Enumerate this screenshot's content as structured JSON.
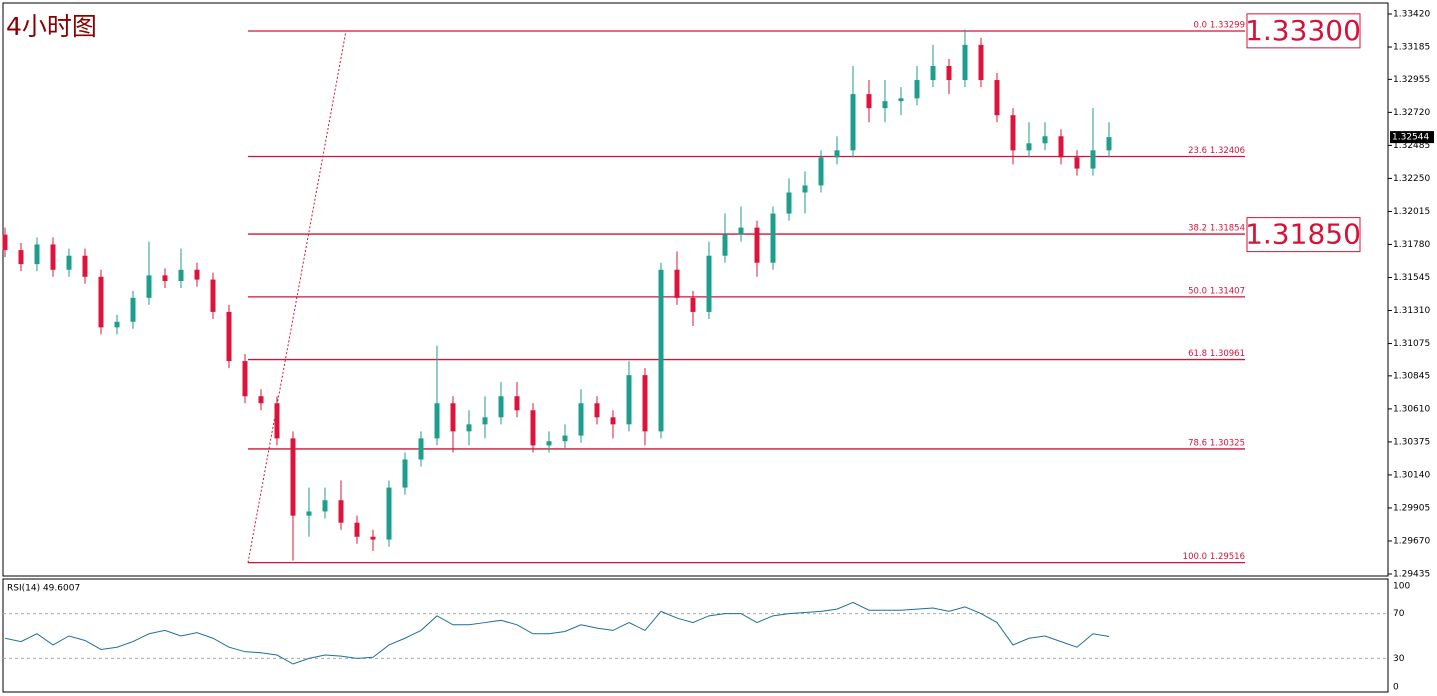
{
  "chart_data": {
    "type": "candlestick",
    "title": "4小时图",
    "up_color": "#1e9e8c",
    "down_color": "#dc143c",
    "fib_color": "#d2143a",
    "ylim": [
      1.29435,
      1.3342
    ],
    "yticks": [
      {
        "value": 1.3342,
        "label": "1.33420"
      },
      {
        "value": 1.33185,
        "label": "1.33185"
      },
      {
        "value": 1.32955,
        "label": "1.32955"
      },
      {
        "value": 1.3272,
        "label": "1.32720"
      },
      {
        "value": 1.32485,
        "label": "1.32485"
      },
      {
        "value": 1.3225,
        "label": "1.32250"
      },
      {
        "value": 1.32015,
        "label": "1.32015"
      },
      {
        "value": 1.3178,
        "label": "1.31780"
      },
      {
        "value": 1.31545,
        "label": "1.31545"
      },
      {
        "value": 1.3131,
        "label": "1.31310"
      },
      {
        "value": 1.31075,
        "label": "1.31075"
      },
      {
        "value": 1.30845,
        "label": "1.30845"
      },
      {
        "value": 1.3061,
        "label": "1.30610"
      },
      {
        "value": 1.30375,
        "label": "1.30375"
      },
      {
        "value": 1.3014,
        "label": "1.30140"
      },
      {
        "value": 1.29905,
        "label": "1.29905"
      },
      {
        "value": 1.2967,
        "label": "1.29670"
      },
      {
        "value": 1.29435,
        "label": "1.29435"
      }
    ],
    "current_price": 1.32544,
    "fib_levels": [
      {
        "level": "0.0",
        "price": 1.33299
      },
      {
        "level": "23.6",
        "price": 1.32406
      },
      {
        "level": "38.2",
        "price": 1.31854
      },
      {
        "level": "50.0",
        "price": 1.31407
      },
      {
        "level": "61.8",
        "price": 1.30961
      },
      {
        "level": "78.6",
        "price": 1.30325
      },
      {
        "level": "100.0",
        "price": 1.29516
      }
    ],
    "price_boxes": [
      {
        "value": 1.333,
        "label": "1.33300"
      },
      {
        "value": 1.3185,
        "label": "1.31850"
      }
    ],
    "candles": [
      [
        1.3185,
        1.319,
        1.3169,
        1.3174
      ],
      [
        1.3174,
        1.3179,
        1.3159,
        1.3164
      ],
      [
        1.3164,
        1.3183,
        1.3159,
        1.3178
      ],
      [
        1.3178,
        1.3183,
        1.3155,
        1.316
      ],
      [
        1.316,
        1.3175,
        1.3155,
        1.317
      ],
      [
        1.317,
        1.3175,
        1.315,
        1.3155
      ],
      [
        1.3155,
        1.316,
        1.3114,
        1.3119
      ],
      [
        1.3119,
        1.3128,
        1.3114,
        1.3123
      ],
      [
        1.3123,
        1.3145,
        1.3118,
        1.314
      ],
      [
        1.314,
        1.318,
        1.3135,
        1.3156
      ],
      [
        1.3156,
        1.3161,
        1.3147,
        1.3152
      ],
      [
        1.3152,
        1.3175,
        1.3147,
        1.316
      ],
      [
        1.316,
        1.3165,
        1.3148,
        1.3153
      ],
      [
        1.3153,
        1.3158,
        1.3125,
        1.313
      ],
      [
        1.313,
        1.3135,
        1.309,
        1.3095
      ],
      [
        1.3095,
        1.31,
        1.3065,
        1.307
      ],
      [
        1.307,
        1.3075,
        1.306,
        1.3065
      ],
      [
        1.3065,
        1.307,
        1.3035,
        1.304
      ],
      [
        1.304,
        1.3045,
        1.2953,
        1.2985
      ],
      [
        1.2985,
        1.3005,
        1.297,
        1.2988
      ],
      [
        1.2988,
        1.3005,
        1.2983,
        1.2996
      ],
      [
        1.2996,
        1.301,
        1.2975,
        1.298
      ],
      [
        1.298,
        1.2985,
        1.2965,
        1.297
      ],
      [
        1.297,
        1.2975,
        1.296,
        1.2968
      ],
      [
        1.2968,
        1.301,
        1.2963,
        1.3005
      ],
      [
        1.3005,
        1.303,
        1.3,
        1.3025
      ],
      [
        1.3025,
        1.3045,
        1.302,
        1.304
      ],
      [
        1.304,
        1.3106,
        1.3035,
        1.3065
      ],
      [
        1.3065,
        1.307,
        1.303,
        1.3045
      ],
      [
        1.3045,
        1.306,
        1.3035,
        1.305
      ],
      [
        1.305,
        1.307,
        1.304,
        1.3055
      ],
      [
        1.3055,
        1.308,
        1.305,
        1.307
      ],
      [
        1.307,
        1.308,
        1.3055,
        1.306
      ],
      [
        1.306,
        1.3065,
        1.303,
        1.3035
      ],
      [
        1.3035,
        1.3045,
        1.303,
        1.3038
      ],
      [
        1.3038,
        1.305,
        1.3033,
        1.3042
      ],
      [
        1.3042,
        1.3075,
        1.3037,
        1.3065
      ],
      [
        1.3065,
        1.307,
        1.305,
        1.3055
      ],
      [
        1.3055,
        1.306,
        1.304,
        1.305
      ],
      [
        1.305,
        1.3095,
        1.3045,
        1.3085
      ],
      [
        1.3085,
        1.309,
        1.3035,
        1.3045
      ],
      [
        1.3045,
        1.3165,
        1.304,
        1.316
      ],
      [
        1.316,
        1.3173,
        1.3135,
        1.314
      ],
      [
        1.314,
        1.3145,
        1.312,
        1.313
      ],
      [
        1.313,
        1.318,
        1.3125,
        1.317
      ],
      [
        1.317,
        1.32,
        1.3165,
        1.3185
      ],
      [
        1.3185,
        1.3205,
        1.318,
        1.319
      ],
      [
        1.319,
        1.3195,
        1.3155,
        1.3165
      ],
      [
        1.3165,
        1.3205,
        1.316,
        1.32
      ],
      [
        1.32,
        1.3225,
        1.3195,
        1.3215
      ],
      [
        1.3215,
        1.323,
        1.32,
        1.322
      ],
      [
        1.322,
        1.3245,
        1.3215,
        1.324
      ],
      [
        1.324,
        1.3255,
        1.3235,
        1.3245
      ],
      [
        1.3245,
        1.3305,
        1.324,
        1.3285
      ],
      [
        1.3285,
        1.3295,
        1.3265,
        1.3275
      ],
      [
        1.3275,
        1.3295,
        1.3265,
        1.328
      ],
      [
        1.328,
        1.329,
        1.327,
        1.3282
      ],
      [
        1.3282,
        1.3305,
        1.3277,
        1.3295
      ],
      [
        1.3295,
        1.332,
        1.329,
        1.3305
      ],
      [
        1.3305,
        1.331,
        1.3285,
        1.3295
      ],
      [
        1.3295,
        1.3331,
        1.329,
        1.332
      ],
      [
        1.332,
        1.3325,
        1.329,
        1.3295
      ],
      [
        1.3295,
        1.33,
        1.3265,
        1.327
      ],
      [
        1.327,
        1.3275,
        1.3235,
        1.3245
      ],
      [
        1.3245,
        1.3265,
        1.324,
        1.325
      ],
      [
        1.325,
        1.3265,
        1.3245,
        1.3255
      ],
      [
        1.3255,
        1.326,
        1.3235,
        1.324
      ],
      [
        1.324,
        1.3245,
        1.3227,
        1.3232
      ],
      [
        1.3232,
        1.3275,
        1.3227,
        1.3245
      ],
      [
        1.3245,
        1.3265,
        1.324,
        1.32544
      ]
    ],
    "indicator": {
      "type": "line",
      "label": "RSI(14) 49.6007",
      "color": "#1f6f9f",
      "ylim": [
        0,
        100
      ],
      "yticks": [
        100,
        70,
        30,
        0
      ],
      "values": [
        48,
        45,
        52,
        42,
        50,
        46,
        38,
        40,
        45,
        52,
        55,
        50,
        53,
        48,
        40,
        36,
        35,
        33,
        25,
        30,
        33,
        32,
        30,
        31,
        42,
        48,
        55,
        68,
        60,
        60,
        62,
        64,
        60,
        52,
        52,
        54,
        60,
        57,
        55,
        62,
        55,
        72,
        66,
        62,
        68,
        70,
        70,
        62,
        68,
        70,
        71,
        72,
        74,
        80,
        73,
        73,
        73,
        74,
        75,
        72,
        76,
        70,
        62,
        42,
        48,
        50,
        45,
        40,
        52,
        49.6007
      ]
    }
  }
}
